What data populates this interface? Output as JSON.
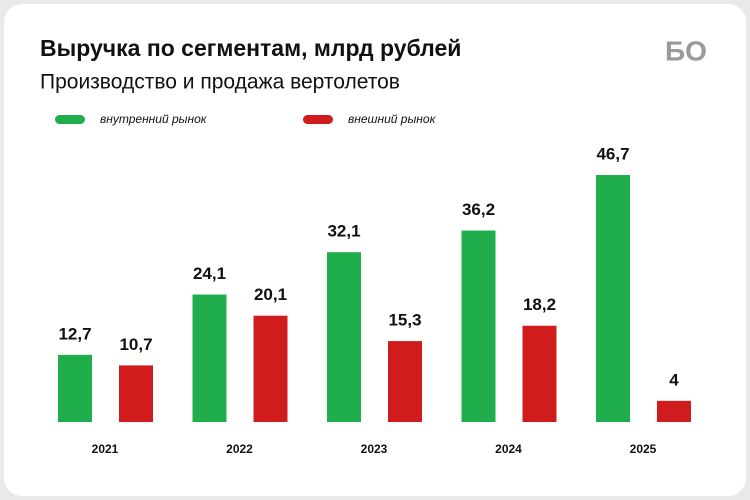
{
  "chart_data": {
    "type": "bar",
    "title": "Выручка по сегментам, млрд рублей",
    "subtitle": "Производство и продажа вертолетов",
    "logo": "БО",
    "categories": [
      "2021",
      "2022",
      "2023",
      "2024",
      "2025"
    ],
    "series": [
      {
        "name": "внутренний рынок",
        "color": "#1fae4b",
        "values": [
          12.7,
          24.1,
          32.1,
          36.2,
          46.7
        ],
        "value_labels": [
          "12,7",
          "24,1",
          "32,1",
          "36,2",
          "46,7"
        ]
      },
      {
        "name": "внешний рынок",
        "color": "#d01c1c",
        "values": [
          10.7,
          20.1,
          15.3,
          18.2,
          4
        ],
        "value_labels": [
          "10,7",
          "20,1",
          "15,3",
          "18,2",
          "4"
        ]
      }
    ]
  }
}
